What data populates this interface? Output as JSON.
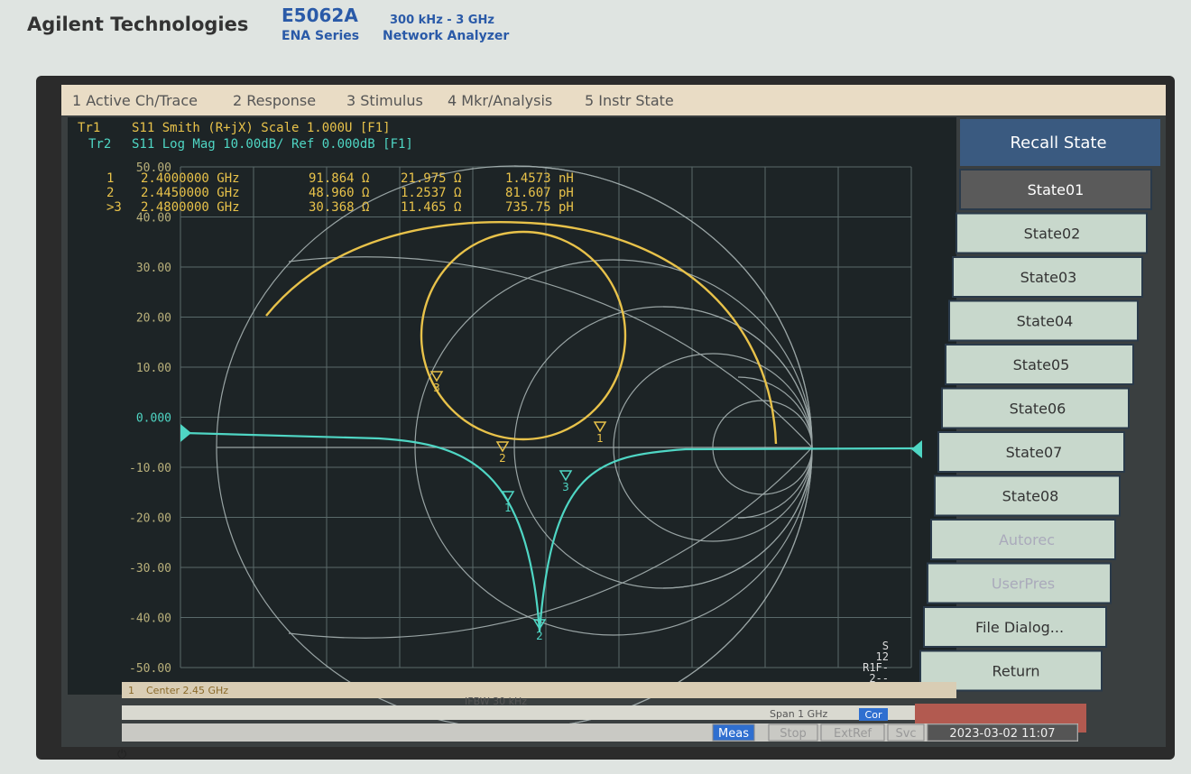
{
  "header": {
    "brand": "Agilent Technologies",
    "model": "E5062A",
    "range": "300 kHz - 3 GHz",
    "series": "ENA Series",
    "product": "Network Analyzer"
  },
  "menu": [
    "1 Active Ch/Trace",
    "2 Response",
    "3 Stimulus",
    "4 Mkr/Analysis",
    "5 Instr State"
  ],
  "traces": [
    {
      "label": "Tr1",
      "text": "S11  Smith (R+jX)  Scale 1.000U  [F1]"
    },
    {
      "label": "Tr2",
      "text": "S11  Log Mag 10.00dB/ Ref 0.000dB  [F1]"
    }
  ],
  "markers": [
    [
      "1",
      "2.4000000 GHz",
      "91.864 Ω",
      "21.975 Ω",
      "1.4573 nH"
    ],
    [
      "2",
      "2.4450000 GHz",
      "48.960 Ω",
      "1.2537 Ω",
      "81.607 pH"
    ],
    [
      ">3",
      "2.4800000 GHz",
      "30.368 Ω",
      "11.465 Ω",
      "735.75 pH"
    ]
  ],
  "y_axis_labels": [
    "50.00",
    "40.00",
    "30.00",
    "20.00",
    "10.00",
    "0.000",
    "-10.00",
    "-20.00",
    "-30.00",
    "-40.00",
    "-50.00"
  ],
  "marker_numbers": [
    "1",
    "2",
    "3"
  ],
  "trace_status": [
    "S",
    "12",
    "R1F-",
    "2--"
  ],
  "softkeys": {
    "title": "Recall State",
    "items": [
      "State01",
      "State02",
      "State03",
      "State04",
      "State05",
      "State06",
      "State07",
      "State08",
      "Autorec",
      "UserPres",
      "File Dialog...",
      "Return"
    ]
  },
  "status": {
    "channel": "1",
    "center": "Center 2.45 GHz",
    "ifbw": "IFBW 30 kHz",
    "span": "Span 1 GHz",
    "cor": "Cor",
    "meas": "Meas",
    "stop": "Stop",
    "extref": "ExtRef",
    "svc": "Svc",
    "datetime": "2023-03-02 11:07"
  }
}
